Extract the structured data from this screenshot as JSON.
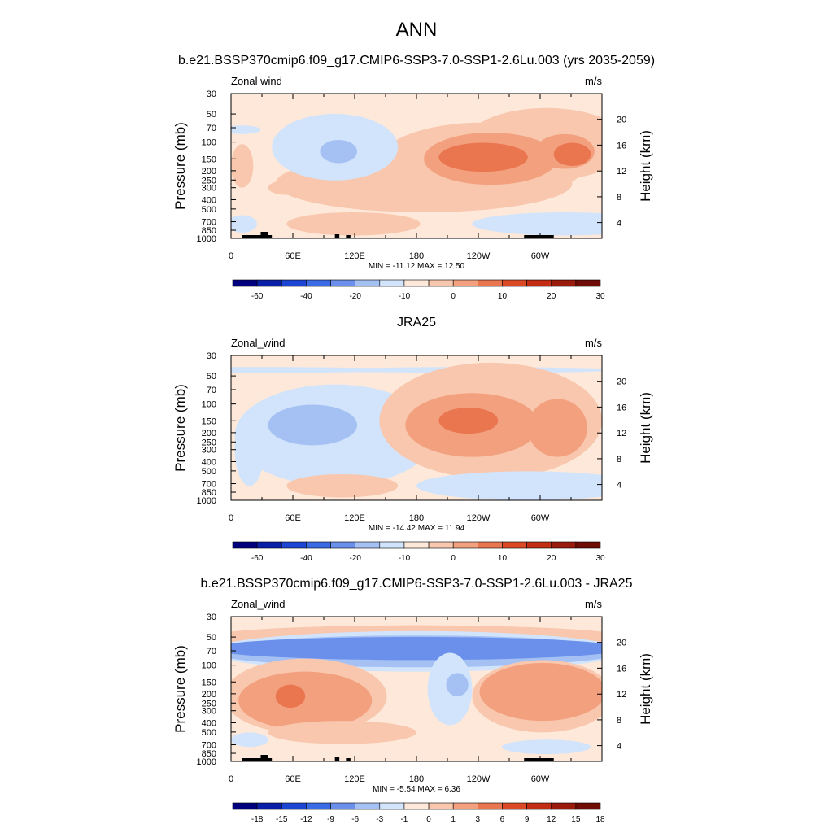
{
  "title": "ANN",
  "chart_data": [
    {
      "type": "heatmap",
      "title": "b.e21.BSSP370cmip6.f09_g17.CMIP6-SSP3-7.0-SSP1-2.6Lu.003 (yrs 2035-2059)",
      "left_label": "Zonal wind",
      "units": "m/s",
      "ylabel": "Pressure (mb)",
      "y2label": "Height (km)",
      "x_ticks": [
        "0",
        "60E",
        "120E",
        "180",
        "120W",
        "60W"
      ],
      "y_ticks": [
        "30",
        "50",
        "70",
        "100",
        "150",
        "200",
        "250",
        "300",
        "400",
        "500",
        "700",
        "850",
        "1000"
      ],
      "height_ticks": [
        "20",
        "16",
        "12",
        "8",
        "4"
      ],
      "stats": "MIN = -11.12  MAX =  12.50",
      "colorbar_labels": [
        "-60",
        "-40",
        "-20",
        "-10",
        "0",
        "10",
        "20",
        "30"
      ],
      "min": -11.12,
      "max": 12.5
    },
    {
      "type": "heatmap",
      "title": "JRA25",
      "left_label": "Zonal_wind",
      "units": "m/s",
      "ylabel": "Pressure (mb)",
      "y2label": "Height (km)",
      "x_ticks": [
        "0",
        "60E",
        "120E",
        "180",
        "120W",
        "60W"
      ],
      "y_ticks": [
        "30",
        "50",
        "70",
        "100",
        "150",
        "200",
        "250",
        "300",
        "400",
        "500",
        "700",
        "850",
        "1000"
      ],
      "height_ticks": [
        "20",
        "16",
        "12",
        "8",
        "4"
      ],
      "stats": "MIN = -14.42  MAX =  11.94",
      "colorbar_labels": [
        "-60",
        "-40",
        "-20",
        "-10",
        "0",
        "10",
        "20",
        "30"
      ],
      "min": -14.42,
      "max": 11.94
    },
    {
      "type": "heatmap",
      "title": "b.e21.BSSP370cmip6.f09_g17.CMIP6-SSP3-7.0-SSP1-2.6Lu.003 - JRA25",
      "left_label": "Zonal_wind",
      "units": "m/s",
      "ylabel": "Pressure (mb)",
      "y2label": "Height (km)",
      "x_ticks": [
        "0",
        "60E",
        "120E",
        "180",
        "120W",
        "60W"
      ],
      "y_ticks": [
        "30",
        "50",
        "70",
        "100",
        "150",
        "200",
        "250",
        "300",
        "400",
        "500",
        "700",
        "850",
        "1000"
      ],
      "height_ticks": [
        "20",
        "16",
        "12",
        "8",
        "4"
      ],
      "stats": "MIN =  -5.54  MAX =   6.36",
      "colorbar_labels": [
        "-18",
        "-15",
        "-12",
        "-9",
        "-6",
        "-3",
        "-1",
        "0",
        "1",
        "3",
        "6",
        "9",
        "12",
        "15",
        "18"
      ],
      "min": -5.54,
      "max": 6.36
    }
  ],
  "colors": {
    "scale": [
      "#00007f",
      "#0a1fa8",
      "#1d45d3",
      "#3a6ae6",
      "#6a90ec",
      "#a5c1f4",
      "#d2e4fb",
      "#fde8d9",
      "#f8c7ad",
      "#f3a07f",
      "#ea7650",
      "#dc4a25",
      "#c22d14",
      "#9a1a0b",
      "#6e0c05"
    ]
  }
}
